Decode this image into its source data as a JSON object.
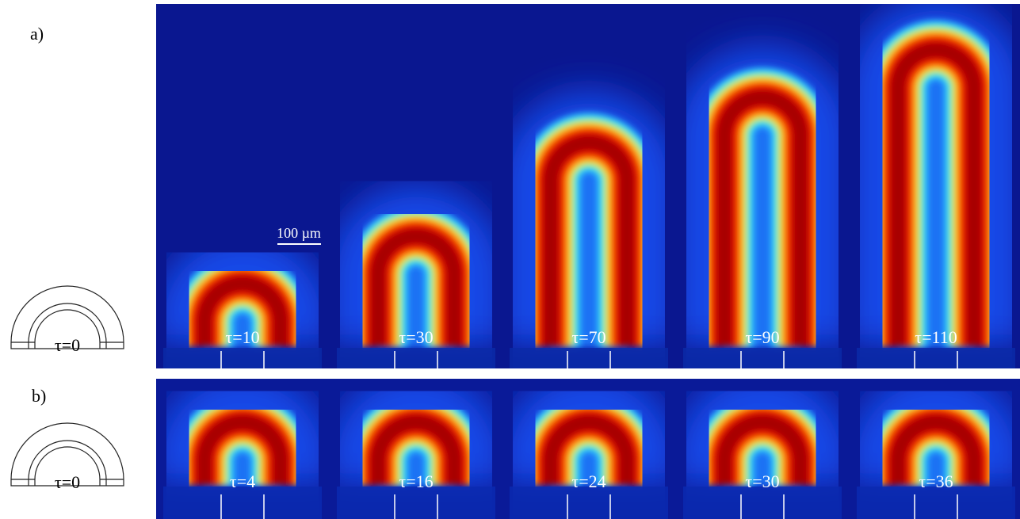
{
  "panels": [
    {
      "label": "a)",
      "initial_label": "τ=0",
      "scale_bar": "100 µm",
      "frames": [
        "τ=10",
        "τ=30",
        "τ=70",
        "τ=90",
        "τ=110"
      ]
    },
    {
      "label": "b)",
      "initial_label": "τ=0",
      "frames": [
        "τ=4",
        "τ=16",
        "τ=24",
        "τ=30",
        "τ=36"
      ]
    }
  ]
}
